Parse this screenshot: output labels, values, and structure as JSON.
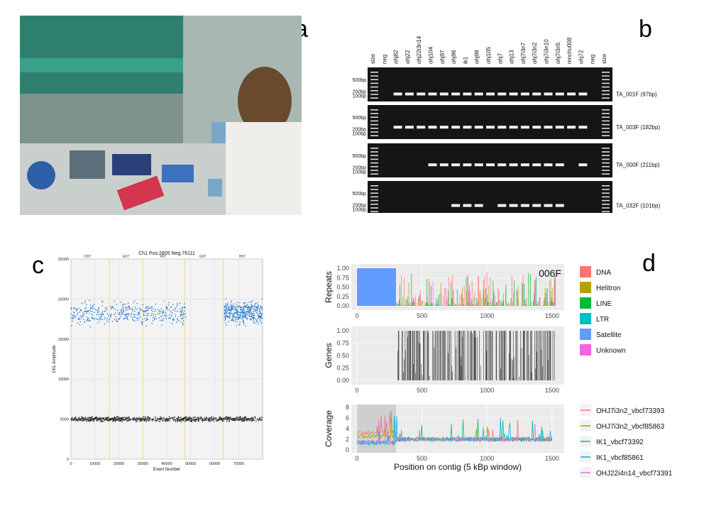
{
  "panels": {
    "a": {
      "letter": "a"
    },
    "b": {
      "letter": "b",
      "lanes": [
        "size",
        "neg",
        "ohj82",
        "ohj22",
        "ohj22i3n14",
        "ohj104",
        "ohj97",
        "ohj96",
        "ik1",
        "ohj98",
        "ohj105",
        "ohj7",
        "ohj13",
        "ohj7i3n7",
        "ohj7i3n2",
        "ohj7i3n10",
        "ohj7i3n5",
        "mnchu008",
        "ohj72",
        "neg",
        "size"
      ],
      "rows": [
        {
          "marker_top": "500bp",
          "marker_mid": "200bp",
          "marker_low": "100bp",
          "primer": "TA_001F  (97bp)"
        },
        {
          "marker_top": "500bp",
          "marker_mid": "200bp",
          "marker_low": "100bp",
          "primer": "TA_003F (182bp)"
        },
        {
          "marker_top": "500bp",
          "marker_mid": "200bp",
          "marker_low": "100bp",
          "primer": "TA_000F (211bp)"
        },
        {
          "marker_top": "500bp",
          "marker_mid": "200bp",
          "marker_low": "100bp",
          "primer": "TA_032F (101bp)"
        }
      ]
    },
    "c": {
      "letter": "c",
      "title": "Ch1 Pos:2805 Neg:76111",
      "wells": [
        "D07",
        "E07",
        "F07",
        "G07",
        "H07"
      ],
      "ylabel": "Ch1 Amplitude",
      "xlabel": "Event Number",
      "yticks": [
        "0",
        "5000",
        "10000",
        "15000",
        "20000",
        "25000"
      ],
      "xticks": [
        "0",
        "10000",
        "20000",
        "30000",
        "40000",
        "50000",
        "60000",
        "70000"
      ]
    },
    "d": {
      "letter": "d",
      "contig": "006F",
      "repeats_label": "Repeats",
      "genes_label": "Genes",
      "coverage_label": "Coverage",
      "xlabel": "Position on contig (5 kBp window)",
      "xticks": [
        "0",
        "500",
        "1000",
        "1500"
      ],
      "yticks_frac": [
        "0.00",
        "0.25",
        "0.50",
        "0.75",
        "1.00"
      ],
      "yticks_cov": [
        "0",
        "2",
        "4",
        "6",
        "8"
      ],
      "repeat_legend": [
        {
          "name": "DNA",
          "color": "#f8766d"
        },
        {
          "name": "Helitron",
          "color": "#b79f00"
        },
        {
          "name": "LINE",
          "color": "#00ba38"
        },
        {
          "name": "LTR",
          "color": "#00bfc4"
        },
        {
          "name": "Satellite",
          "color": "#619cff"
        },
        {
          "name": "Unknown",
          "color": "#f564e3"
        }
      ],
      "coverage_legend": [
        {
          "name": "OHJ7i3n2_vbcf73393",
          "color": "#f8766d"
        },
        {
          "name": "OHJ7i3n2_vbcf85863",
          "color": "#a3a500"
        },
        {
          "name": "IK1_vbcf73392",
          "color": "#00bf7d"
        },
        {
          "name": "IK1_vbcf85861",
          "color": "#00b0f6"
        },
        {
          "name": "OHJ22i4n14_vbcf73391",
          "color": "#e76bf3"
        }
      ]
    }
  },
  "chart_data": [
    {
      "type": "scatter",
      "title": "Ch1 Pos:2805 Neg:76111",
      "xlabel": "Event Number",
      "ylabel": "Ch1 Amplitude",
      "xlim": [
        0,
        80000
      ],
      "ylim": [
        0,
        25000
      ],
      "series": [
        {
          "name": "positive",
          "x_ranges": [
            [
              0,
              48000
            ],
            [
              64000,
              80000
            ]
          ],
          "y_center": 18300
        },
        {
          "name": "negative",
          "x_ranges": [
            [
              0,
              80000
            ]
          ],
          "y_center": 5000
        }
      ]
    },
    {
      "type": "area",
      "title": "006F",
      "xlabel": "Position on contig (5 kBp window)",
      "xlim": [
        0,
        1550
      ],
      "panels": [
        {
          "ylabel": "Repeats",
          "ylim": [
            0,
            1
          ],
          "satellite_range": [
            0,
            300
          ]
        },
        {
          "ylabel": "Genes",
          "ylim": [
            0,
            1
          ],
          "gene_start": 310
        },
        {
          "ylabel": "Coverage",
          "ylim": [
            0,
            8
          ],
          "baseline": 2
        }
      ]
    }
  ]
}
